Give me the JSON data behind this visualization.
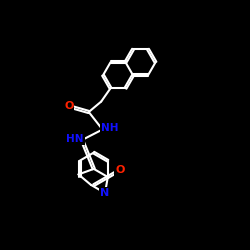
{
  "bg": "#000000",
  "wh": "#ffffff",
  "cO": "#ff2200",
  "cN": "#1111ff",
  "bw": 1.5,
  "dbo": 0.05,
  "fs": 8.0,
  "xlim": [
    0,
    10
  ],
  "ylim": [
    0,
    10
  ],
  "nap_ring_r": 0.6,
  "benz_r": 0.62,
  "bl": 0.65
}
